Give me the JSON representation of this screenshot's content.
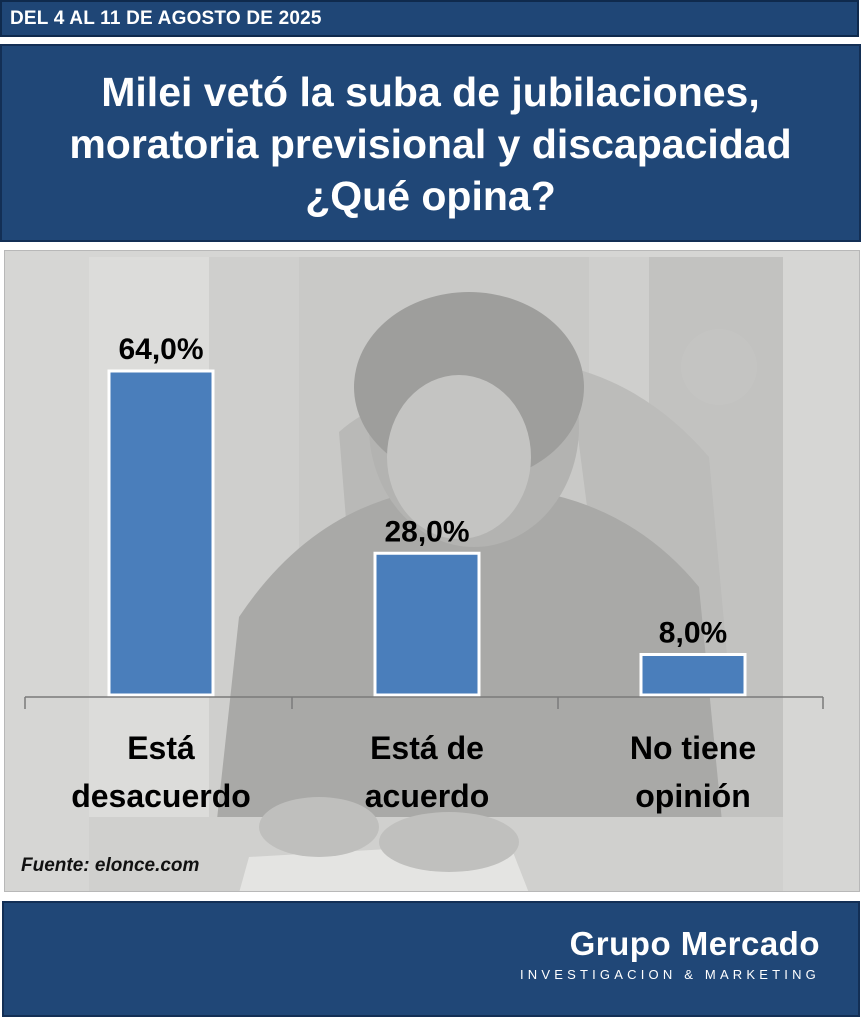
{
  "header": {
    "date_range": "DEL 4 AL 11 DE AGOSTO DE 2025",
    "title_lines": [
      "Milei vetó la suba de jubilaciones,",
      "moratoria previsional y discapacidad",
      "¿Qué opina?"
    ]
  },
  "source": "Fuente: elonce.com",
  "brand": {
    "name": "Grupo Mercado",
    "tagline": "INVESTIGACION & MARKETING"
  },
  "colors": {
    "header_blue": "#204777",
    "bar_blue": "#4a7ebb",
    "bar_border": "#ffffff"
  },
  "chart_data": {
    "type": "bar",
    "categories": [
      [
        "Está",
        "desacuerdo"
      ],
      [
        "Está de",
        "acuerdo"
      ],
      [
        "No tiene",
        "opinión"
      ]
    ],
    "values": [
      64.0,
      28.0,
      8.0
    ],
    "value_labels": [
      "64,0%",
      "28,0%",
      "8,0%"
    ],
    "ylim": [
      0,
      64
    ],
    "title": "",
    "xlabel": "",
    "ylabel": "",
    "grid": false,
    "legend": false
  }
}
